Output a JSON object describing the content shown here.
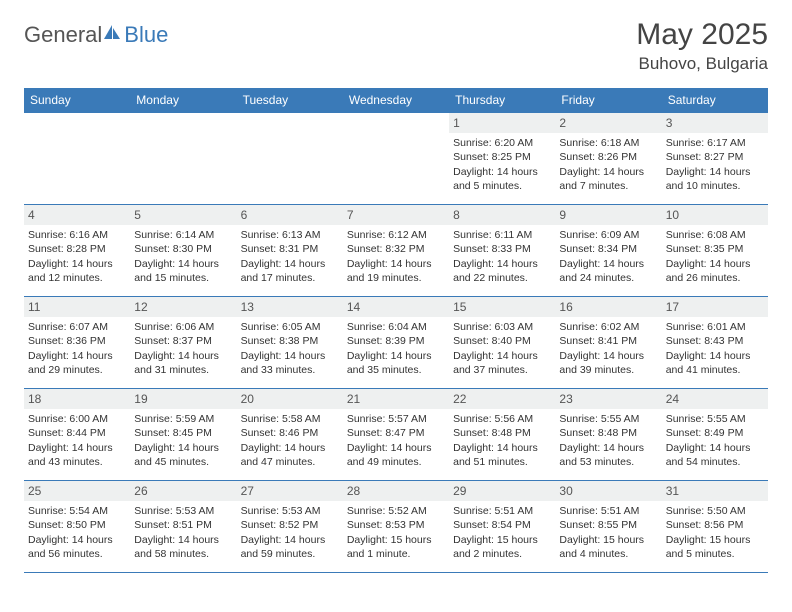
{
  "brand": {
    "part1": "General",
    "part2": "Blue"
  },
  "title": "May 2025",
  "location": "Buhovo, Bulgaria",
  "colors": {
    "header_bg": "#3a7ab8",
    "header_text": "#ffffff",
    "border": "#3a7ab8",
    "daynum_bg": "#eef0f0",
    "text": "#333333",
    "page_bg": "#ffffff"
  },
  "weekdays": [
    "Sunday",
    "Monday",
    "Tuesday",
    "Wednesday",
    "Thursday",
    "Friday",
    "Saturday"
  ],
  "weeks": [
    [
      {
        "day": "",
        "sunrise": "",
        "sunset": "",
        "daylight": ""
      },
      {
        "day": "",
        "sunrise": "",
        "sunset": "",
        "daylight": ""
      },
      {
        "day": "",
        "sunrise": "",
        "sunset": "",
        "daylight": ""
      },
      {
        "day": "",
        "sunrise": "",
        "sunset": "",
        "daylight": ""
      },
      {
        "day": "1",
        "sunrise": "Sunrise: 6:20 AM",
        "sunset": "Sunset: 8:25 PM",
        "daylight": "Daylight: 14 hours and 5 minutes."
      },
      {
        "day": "2",
        "sunrise": "Sunrise: 6:18 AM",
        "sunset": "Sunset: 8:26 PM",
        "daylight": "Daylight: 14 hours and 7 minutes."
      },
      {
        "day": "3",
        "sunrise": "Sunrise: 6:17 AM",
        "sunset": "Sunset: 8:27 PM",
        "daylight": "Daylight: 14 hours and 10 minutes."
      }
    ],
    [
      {
        "day": "4",
        "sunrise": "Sunrise: 6:16 AM",
        "sunset": "Sunset: 8:28 PM",
        "daylight": "Daylight: 14 hours and 12 minutes."
      },
      {
        "day": "5",
        "sunrise": "Sunrise: 6:14 AM",
        "sunset": "Sunset: 8:30 PM",
        "daylight": "Daylight: 14 hours and 15 minutes."
      },
      {
        "day": "6",
        "sunrise": "Sunrise: 6:13 AM",
        "sunset": "Sunset: 8:31 PM",
        "daylight": "Daylight: 14 hours and 17 minutes."
      },
      {
        "day": "7",
        "sunrise": "Sunrise: 6:12 AM",
        "sunset": "Sunset: 8:32 PM",
        "daylight": "Daylight: 14 hours and 19 minutes."
      },
      {
        "day": "8",
        "sunrise": "Sunrise: 6:11 AM",
        "sunset": "Sunset: 8:33 PM",
        "daylight": "Daylight: 14 hours and 22 minutes."
      },
      {
        "day": "9",
        "sunrise": "Sunrise: 6:09 AM",
        "sunset": "Sunset: 8:34 PM",
        "daylight": "Daylight: 14 hours and 24 minutes."
      },
      {
        "day": "10",
        "sunrise": "Sunrise: 6:08 AM",
        "sunset": "Sunset: 8:35 PM",
        "daylight": "Daylight: 14 hours and 26 minutes."
      }
    ],
    [
      {
        "day": "11",
        "sunrise": "Sunrise: 6:07 AM",
        "sunset": "Sunset: 8:36 PM",
        "daylight": "Daylight: 14 hours and 29 minutes."
      },
      {
        "day": "12",
        "sunrise": "Sunrise: 6:06 AM",
        "sunset": "Sunset: 8:37 PM",
        "daylight": "Daylight: 14 hours and 31 minutes."
      },
      {
        "day": "13",
        "sunrise": "Sunrise: 6:05 AM",
        "sunset": "Sunset: 8:38 PM",
        "daylight": "Daylight: 14 hours and 33 minutes."
      },
      {
        "day": "14",
        "sunrise": "Sunrise: 6:04 AM",
        "sunset": "Sunset: 8:39 PM",
        "daylight": "Daylight: 14 hours and 35 minutes."
      },
      {
        "day": "15",
        "sunrise": "Sunrise: 6:03 AM",
        "sunset": "Sunset: 8:40 PM",
        "daylight": "Daylight: 14 hours and 37 minutes."
      },
      {
        "day": "16",
        "sunrise": "Sunrise: 6:02 AM",
        "sunset": "Sunset: 8:41 PM",
        "daylight": "Daylight: 14 hours and 39 minutes."
      },
      {
        "day": "17",
        "sunrise": "Sunrise: 6:01 AM",
        "sunset": "Sunset: 8:43 PM",
        "daylight": "Daylight: 14 hours and 41 minutes."
      }
    ],
    [
      {
        "day": "18",
        "sunrise": "Sunrise: 6:00 AM",
        "sunset": "Sunset: 8:44 PM",
        "daylight": "Daylight: 14 hours and 43 minutes."
      },
      {
        "day": "19",
        "sunrise": "Sunrise: 5:59 AM",
        "sunset": "Sunset: 8:45 PM",
        "daylight": "Daylight: 14 hours and 45 minutes."
      },
      {
        "day": "20",
        "sunrise": "Sunrise: 5:58 AM",
        "sunset": "Sunset: 8:46 PM",
        "daylight": "Daylight: 14 hours and 47 minutes."
      },
      {
        "day": "21",
        "sunrise": "Sunrise: 5:57 AM",
        "sunset": "Sunset: 8:47 PM",
        "daylight": "Daylight: 14 hours and 49 minutes."
      },
      {
        "day": "22",
        "sunrise": "Sunrise: 5:56 AM",
        "sunset": "Sunset: 8:48 PM",
        "daylight": "Daylight: 14 hours and 51 minutes."
      },
      {
        "day": "23",
        "sunrise": "Sunrise: 5:55 AM",
        "sunset": "Sunset: 8:48 PM",
        "daylight": "Daylight: 14 hours and 53 minutes."
      },
      {
        "day": "24",
        "sunrise": "Sunrise: 5:55 AM",
        "sunset": "Sunset: 8:49 PM",
        "daylight": "Daylight: 14 hours and 54 minutes."
      }
    ],
    [
      {
        "day": "25",
        "sunrise": "Sunrise: 5:54 AM",
        "sunset": "Sunset: 8:50 PM",
        "daylight": "Daylight: 14 hours and 56 minutes."
      },
      {
        "day": "26",
        "sunrise": "Sunrise: 5:53 AM",
        "sunset": "Sunset: 8:51 PM",
        "daylight": "Daylight: 14 hours and 58 minutes."
      },
      {
        "day": "27",
        "sunrise": "Sunrise: 5:53 AM",
        "sunset": "Sunset: 8:52 PM",
        "daylight": "Daylight: 14 hours and 59 minutes."
      },
      {
        "day": "28",
        "sunrise": "Sunrise: 5:52 AM",
        "sunset": "Sunset: 8:53 PM",
        "daylight": "Daylight: 15 hours and 1 minute."
      },
      {
        "day": "29",
        "sunrise": "Sunrise: 5:51 AM",
        "sunset": "Sunset: 8:54 PM",
        "daylight": "Daylight: 15 hours and 2 minutes."
      },
      {
        "day": "30",
        "sunrise": "Sunrise: 5:51 AM",
        "sunset": "Sunset: 8:55 PM",
        "daylight": "Daylight: 15 hours and 4 minutes."
      },
      {
        "day": "31",
        "sunrise": "Sunrise: 5:50 AM",
        "sunset": "Sunset: 8:56 PM",
        "daylight": "Daylight: 15 hours and 5 minutes."
      }
    ]
  ]
}
